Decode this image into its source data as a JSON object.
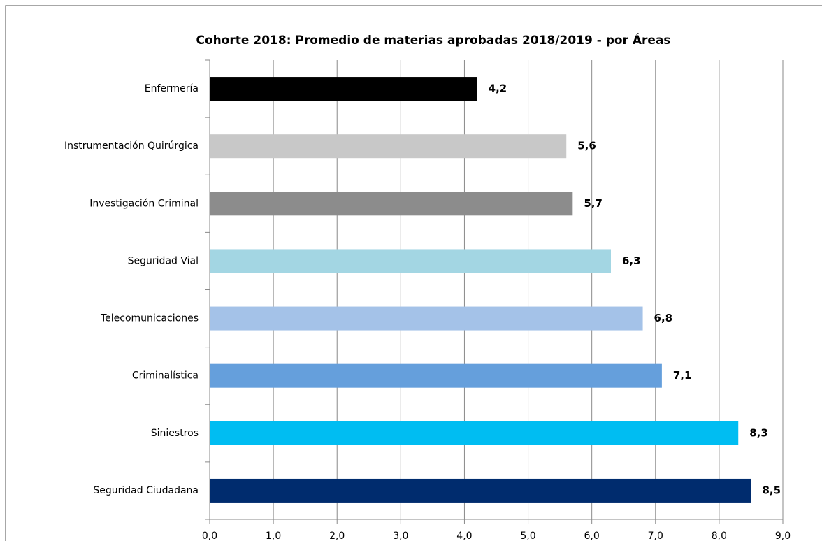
{
  "chart_data": {
    "type": "hbar",
    "title": "Cohorte 2018: Promedio de materias aprobadas 2018/2019  - por Áreas",
    "categories": [
      "Enfermería",
      "Instrumentación Quirúrgica",
      "Investigación Criminal",
      "Seguridad Vial",
      "Telecomunicaciones",
      "Criminalística",
      "Siniestros",
      "Seguridad Ciudadana"
    ],
    "values": [
      4.2,
      5.6,
      5.7,
      6.3,
      6.8,
      7.1,
      8.3,
      8.5
    ],
    "value_labels": [
      "4,2",
      "5,6",
      "5,7",
      "6,3",
      "6,8",
      "7,1",
      "8,3",
      "8,5"
    ],
    "colors": [
      "#000000",
      "#c8c8c8",
      "#8c8c8c",
      "#a3d6e3",
      "#a4c2e8",
      "#659fdc",
      "#00bdf2",
      "#002c6e"
    ],
    "xlim": [
      0,
      9
    ],
    "xticks": [
      {
        "value": 0,
        "label": "0,0"
      },
      {
        "value": 1,
        "label": "1,0"
      },
      {
        "value": 2,
        "label": "2,0"
      },
      {
        "value": 3,
        "label": "3,0"
      },
      {
        "value": 4,
        "label": "4,0"
      },
      {
        "value": 5,
        "label": "5,0"
      },
      {
        "value": 6,
        "label": "6,0"
      },
      {
        "value": 7,
        "label": "7,0"
      },
      {
        "value": 8,
        "label": "8,0"
      },
      {
        "value": 9,
        "label": "9,0"
      }
    ],
    "grid": true
  }
}
